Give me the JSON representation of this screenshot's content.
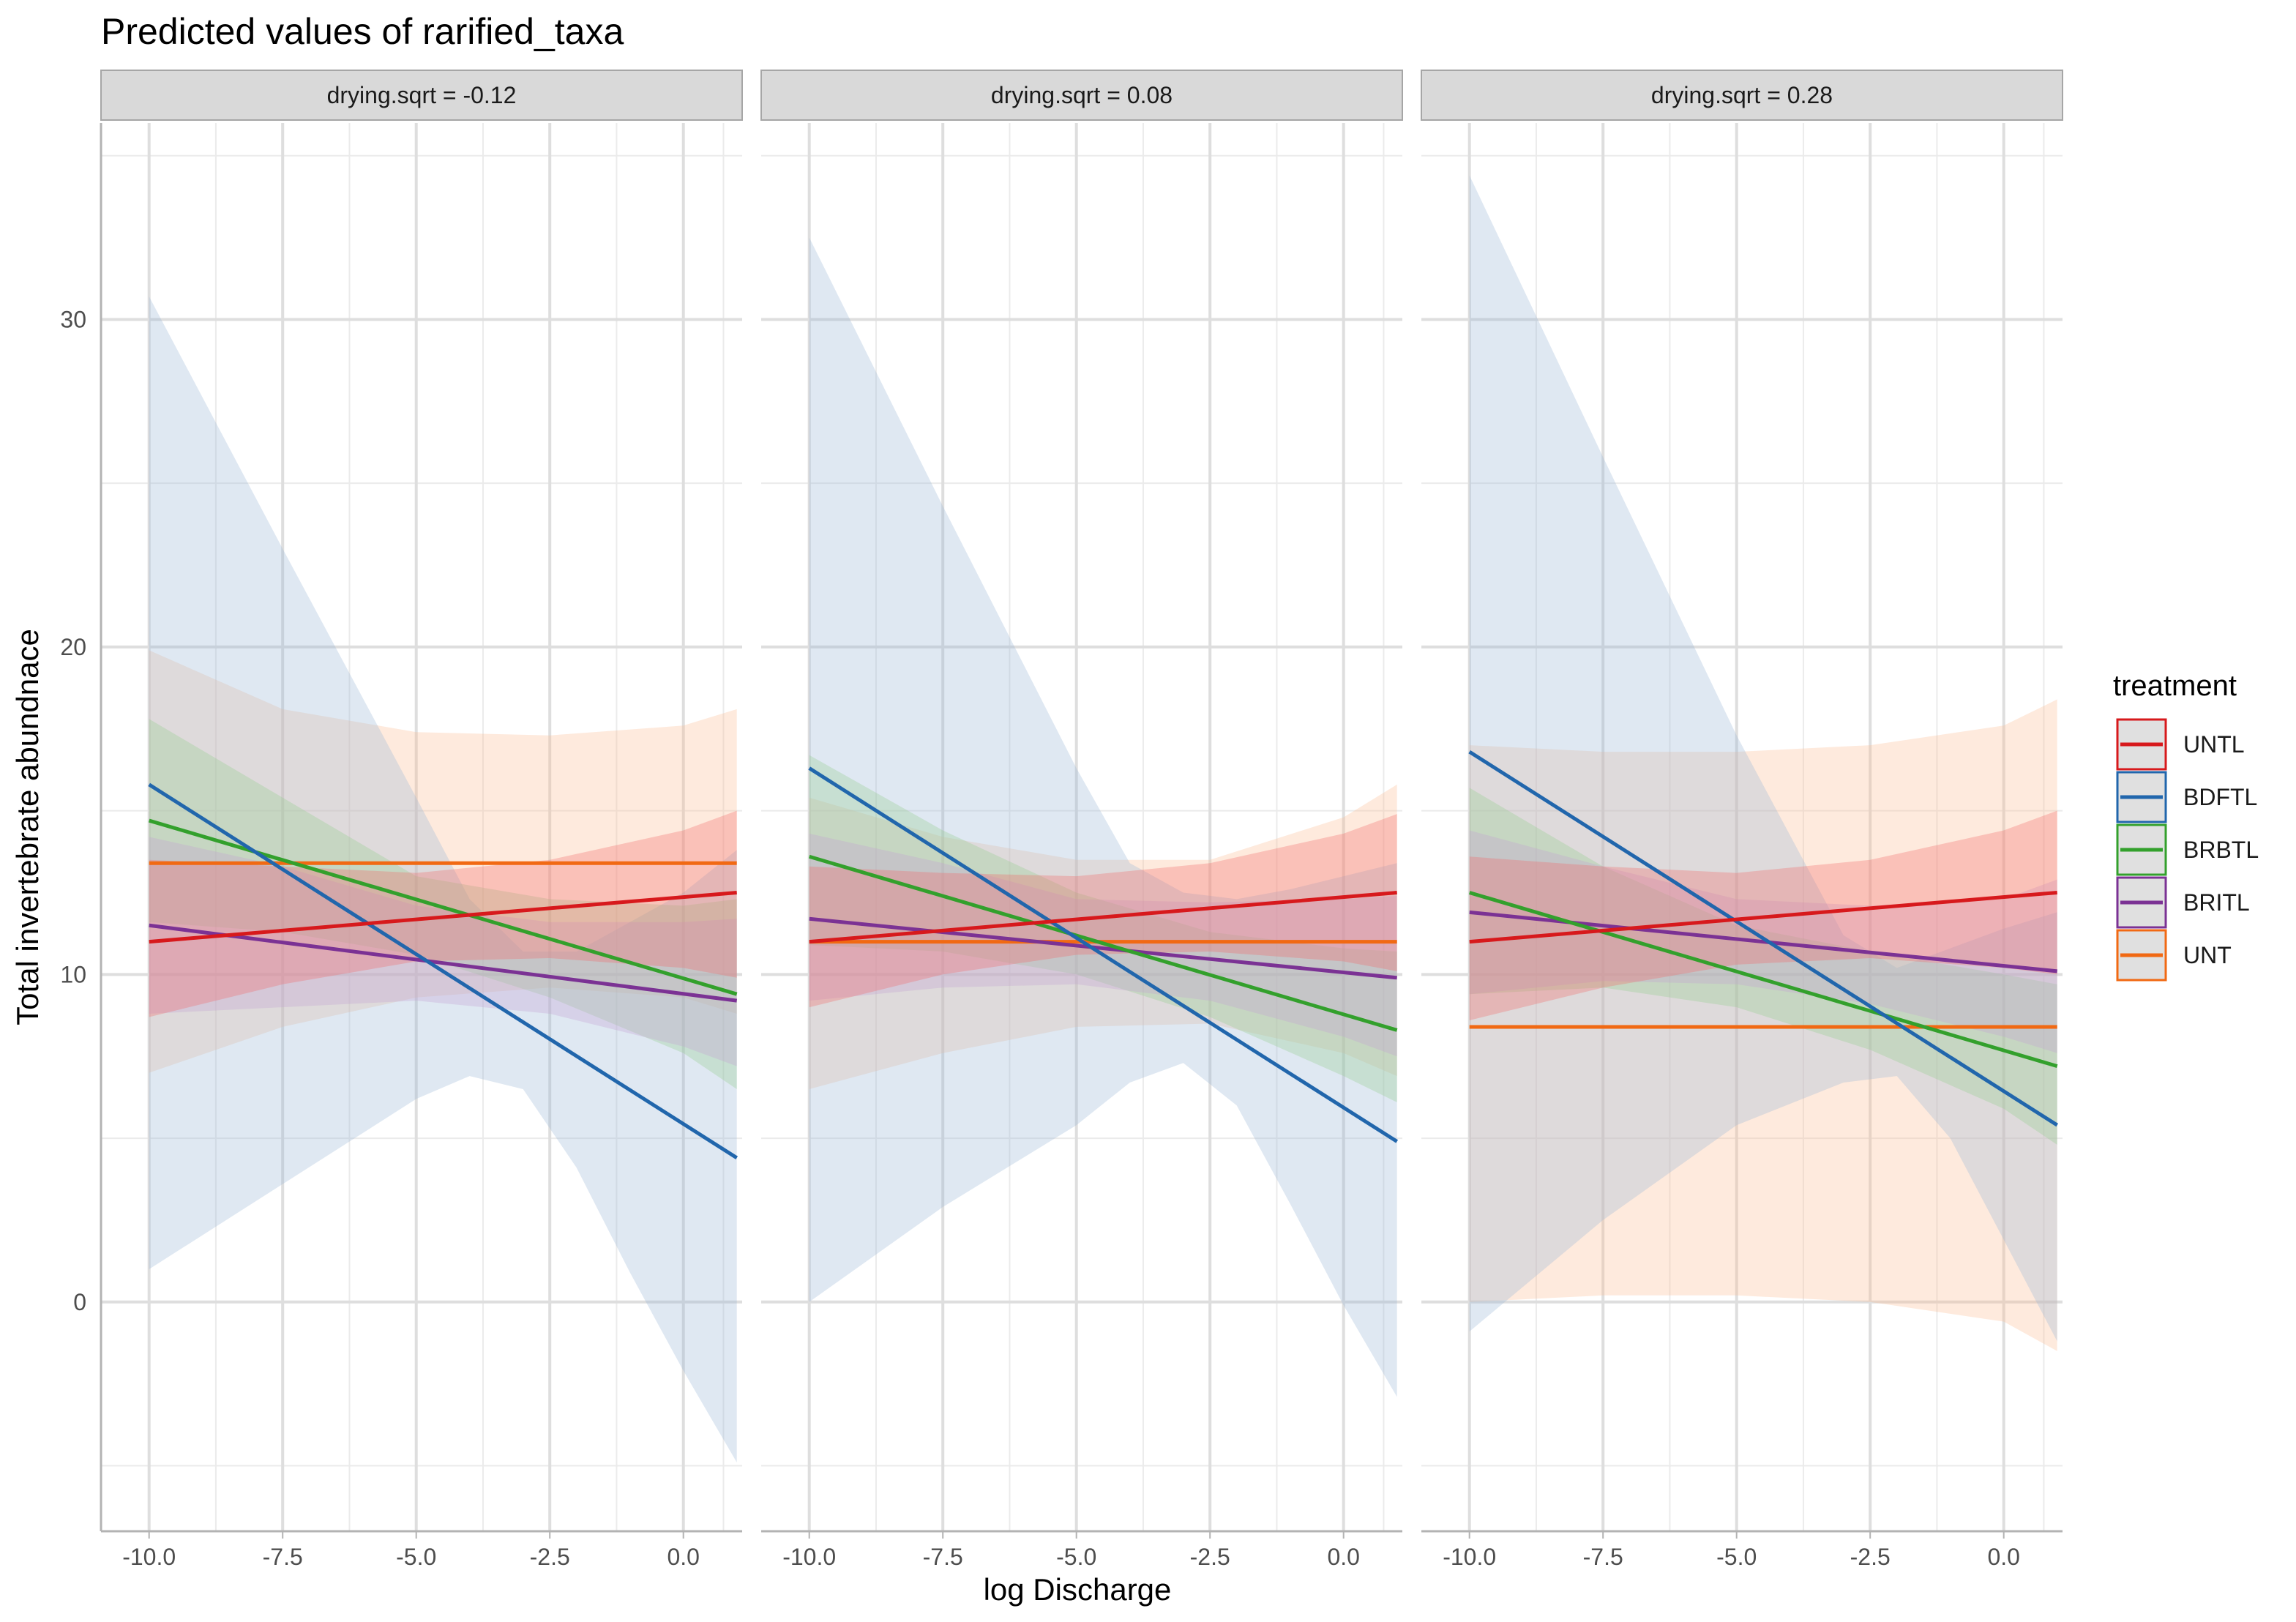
{
  "chart_data": {
    "type": "line",
    "title": "Predicted values of rarified_taxa",
    "xlabel": "log Discharge",
    "ylabel": "Total invertebrate abundnace",
    "xlim": [
      -10.0,
      1.0
    ],
    "ylim": [
      -7,
      36
    ],
    "x_ticks": [
      "-10.0",
      "-7.5",
      "-5.0",
      "-2.5",
      "0.0"
    ],
    "y_ticks": [
      "0",
      "10",
      "20",
      "30"
    ],
    "grid": true,
    "legend": {
      "title": "treatment",
      "position": "right",
      "items": [
        {
          "name": "UNTL",
          "color": "#d7191c"
        },
        {
          "name": "BDFTL",
          "color": "#2166ac"
        },
        {
          "name": "BRBTL",
          "color": "#33a02c"
        },
        {
          "name": "BRITL",
          "color": "#7b3294"
        },
        {
          "name": "UNT",
          "color": "#f16913"
        }
      ]
    },
    "colors": {
      "UNTL": "#d7191c",
      "BDFTL": "#2166ac",
      "BRBTL": "#33a02c",
      "BRITL": "#7b3294",
      "UNT": "#f16913"
    },
    "band_fills": {
      "UNTL": "#f26b6b",
      "BDFTL": "#9ab6d8",
      "BRBTL": "#96cc8e",
      "BRITL": "#c3a3d2",
      "UNT": "#fdbf94"
    },
    "panels": [
      {
        "label": "drying.sqrt = -0.12",
        "series": [
          {
            "name": "UNTL",
            "x": [
              -10,
              1
            ],
            "y": [
              11.0,
              12.5
            ],
            "ci_x": [
              -10,
              -7.5,
              -5,
              -2.5,
              0,
              1
            ],
            "ci_lower": [
              8.7,
              9.7,
              10.4,
              10.5,
              10.2,
              9.9
            ],
            "ci_upper": [
              13.5,
              13.3,
              13.1,
              13.5,
              14.4,
              15.0
            ]
          },
          {
            "name": "BDFTL",
            "x": [
              -10,
              1
            ],
            "y": [
              15.8,
              4.4
            ],
            "ci_x": [
              -10,
              -7.5,
              -5,
              -4,
              -3,
              -2,
              -1,
              0,
              1
            ],
            "ci_lower": [
              1.0,
              3.6,
              6.2,
              6.9,
              6.5,
              4.1,
              0.9,
              -2.1,
              -4.9
            ],
            "ci_upper": [
              30.7,
              23.0,
              15.4,
              12.3,
              10.7,
              10.7,
              11.6,
              12.5,
              13.8
            ]
          },
          {
            "name": "BRBTL",
            "x": [
              -10,
              1
            ],
            "y": [
              14.7,
              9.4
            ],
            "ci_x": [
              -10,
              -7.5,
              -5,
              -2.5,
              0,
              1
            ],
            "ci_lower": [
              11.6,
              11.3,
              10.6,
              9.3,
              7.6,
              6.5
            ],
            "ci_upper": [
              17.8,
              15.4,
              13.0,
              12.3,
              12.1,
              12.3
            ]
          },
          {
            "name": "BRITL",
            "x": [
              -10,
              1
            ],
            "y": [
              11.5,
              9.2
            ],
            "ci_x": [
              -10,
              -7.5,
              -5,
              -2.5,
              0,
              1
            ],
            "ci_lower": [
              8.8,
              9.0,
              9.2,
              8.8,
              7.8,
              7.2
            ],
            "ci_upper": [
              14.2,
              13.3,
              12.1,
              11.6,
              11.6,
              11.7
            ]
          },
          {
            "name": "UNT",
            "x": [
              -10,
              1
            ],
            "y": [
              13.4,
              13.4
            ],
            "ci_x": [
              -10,
              -7.5,
              -5,
              -2.5,
              0,
              1
            ],
            "ci_lower": [
              7.0,
              8.4,
              9.3,
              9.6,
              9.3,
              8.8
            ],
            "ci_upper": [
              19.9,
              18.1,
              17.4,
              17.3,
              17.6,
              18.1
            ]
          }
        ]
      },
      {
        "label": "drying.sqrt = 0.08",
        "series": [
          {
            "name": "UNTL",
            "x": [
              -10,
              1
            ],
            "y": [
              11.0,
              12.5
            ],
            "ci_x": [
              -10,
              -7.5,
              -5,
              -2.5,
              0,
              1
            ],
            "ci_lower": [
              9.0,
              10.0,
              10.6,
              10.7,
              10.4,
              10.1
            ],
            "ci_upper": [
              13.3,
              13.1,
              13.0,
              13.4,
              14.3,
              14.9
            ]
          },
          {
            "name": "BDFTL",
            "x": [
              -10,
              1
            ],
            "y": [
              16.3,
              4.9
            ],
            "ci_x": [
              -10,
              -7.5,
              -5,
              -4,
              -3,
              -2,
              -1,
              0,
              1
            ],
            "ci_lower": [
              0.0,
              2.9,
              5.4,
              6.7,
              7.3,
              6.0,
              3.0,
              -0.1,
              -2.9
            ],
            "ci_upper": [
              32.5,
              24.3,
              16.3,
              13.4,
              12.5,
              12.3,
              12.6,
              13.0,
              13.4
            ]
          },
          {
            "name": "BRBTL",
            "x": [
              -10,
              1
            ],
            "y": [
              13.6,
              8.3
            ],
            "ci_x": [
              -10,
              -7.5,
              -5,
              -2.5,
              0,
              1
            ],
            "ci_lower": [
              10.9,
              10.7,
              10.0,
              8.7,
              6.9,
              6.1
            ],
            "ci_upper": [
              16.7,
              14.4,
              12.5,
              11.3,
              10.8,
              10.7
            ]
          },
          {
            "name": "BRITL",
            "x": [
              -10,
              1
            ],
            "y": [
              11.7,
              9.9
            ],
            "ci_x": [
              -10,
              -7.5,
              -5,
              -2.5,
              0,
              1
            ],
            "ci_lower": [
              9.2,
              9.6,
              9.7,
              9.2,
              8.1,
              7.5
            ],
            "ci_upper": [
              14.3,
              13.4,
              12.3,
              12.2,
              12.3,
              12.4
            ]
          },
          {
            "name": "UNT",
            "x": [
              -10,
              1
            ],
            "y": [
              11.0,
              11.0
            ],
            "ci_x": [
              -10,
              -7.5,
              -5,
              -2.5,
              0,
              1
            ],
            "ci_lower": [
              6.5,
              7.6,
              8.4,
              8.5,
              7.6,
              6.9
            ],
            "ci_upper": [
              15.4,
              14.2,
              13.5,
              13.5,
              14.8,
              15.8
            ]
          }
        ]
      },
      {
        "label": "drying.sqrt = 0.28",
        "series": [
          {
            "name": "UNTL",
            "x": [
              -10,
              1
            ],
            "y": [
              11.0,
              12.5
            ],
            "ci_x": [
              -10,
              -7.5,
              -5,
              -2.5,
              0,
              1
            ],
            "ci_lower": [
              8.6,
              9.6,
              10.3,
              10.5,
              10.2,
              10.0
            ],
            "ci_upper": [
              13.6,
              13.3,
              13.1,
              13.5,
              14.4,
              15.0
            ]
          },
          {
            "name": "BDFTL",
            "x": [
              -10,
              1
            ],
            "y": [
              16.8,
              5.4
            ],
            "ci_x": [
              -10,
              -7.5,
              -5,
              -3,
              -2,
              -1,
              0,
              1
            ],
            "ci_lower": [
              -0.9,
              2.5,
              5.4,
              6.7,
              6.9,
              5.0,
              1.9,
              -1.2
            ],
            "ci_upper": [
              34.4,
              25.8,
              17.3,
              11.2,
              10.2,
              10.8,
              11.4,
              11.9
            ]
          },
          {
            "name": "BRBTL",
            "x": [
              -10,
              1
            ],
            "y": [
              12.5,
              7.2
            ],
            "ci_x": [
              -10,
              -7.5,
              -5,
              -2.5,
              0,
              1
            ],
            "ci_lower": [
              9.4,
              9.6,
              9.0,
              7.7,
              5.9,
              4.8
            ],
            "ci_upper": [
              15.7,
              13.3,
              11.5,
              10.7,
              10.0,
              9.7
            ]
          },
          {
            "name": "BRITL",
            "x": [
              -10,
              1
            ],
            "y": [
              11.9,
              10.1
            ],
            "ci_x": [
              -10,
              -7.5,
              -5,
              -2.5,
              0,
              1
            ],
            "ci_lower": [
              9.4,
              9.8,
              9.7,
              9.1,
              8.1,
              7.6
            ],
            "ci_upper": [
              14.4,
              13.3,
              12.3,
              12.1,
              12.3,
              12.9
            ]
          },
          {
            "name": "UNT",
            "x": [
              -10,
              1
            ],
            "y": [
              8.4,
              8.4
            ],
            "ci_x": [
              -10,
              -7.5,
              -5,
              -2.5,
              0,
              1
            ],
            "ci_lower": [
              0.0,
              0.2,
              0.2,
              0.0,
              -0.6,
              -1.5
            ],
            "ci_upper": [
              17.0,
              16.8,
              16.8,
              17.0,
              17.6,
              18.4
            ]
          }
        ]
      }
    ]
  }
}
